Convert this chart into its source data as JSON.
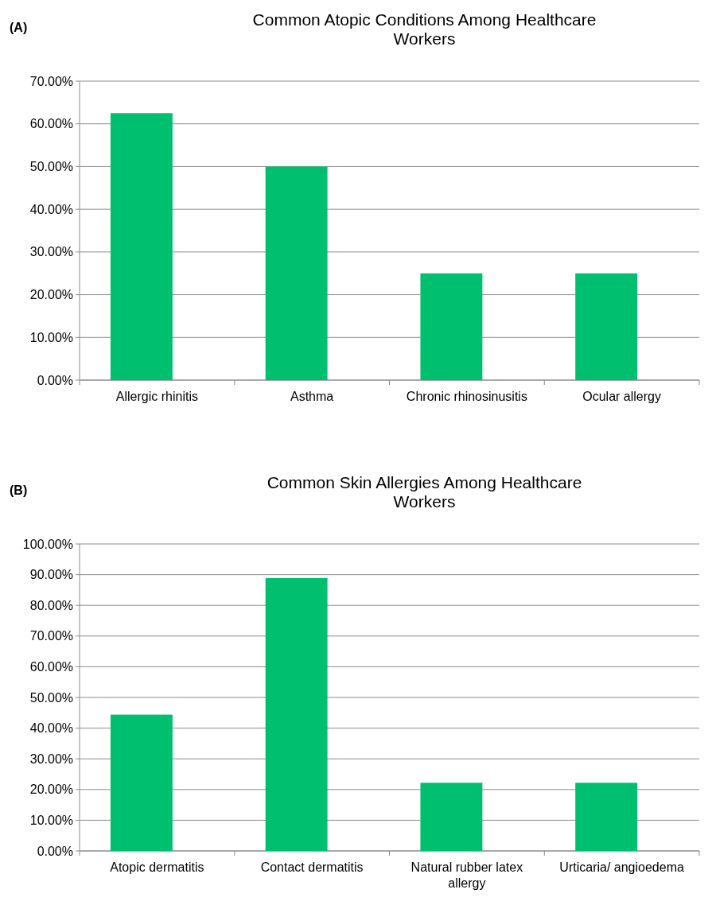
{
  "chart_data": [
    {
      "type": "bar",
      "title": "Common Atopic Conditions Among Healthcare Workers",
      "annotations": [
        "(A)"
      ],
      "categories": [
        "Allergic rhinitis",
        "Asthma",
        "Chronic rhinosinusitis",
        "Ocular allergy"
      ],
      "values": [
        62.5,
        50,
        25,
        25
      ],
      "color": "#00bf6f",
      "ylim": [
        0,
        70
      ],
      "yticks": [
        {
          "value": 0,
          "label": "0.00%"
        },
        {
          "value": 10,
          "label": "10.00%"
        },
        {
          "value": 20,
          "label": "20.00%"
        },
        {
          "value": 30,
          "label": "30.00%"
        },
        {
          "value": 40,
          "label": "40.00%"
        },
        {
          "value": 50,
          "label": "50.00%"
        },
        {
          "value": 60,
          "label": "60.00%"
        },
        {
          "value": 70,
          "label": "70.00%"
        }
      ],
      "grid": "y"
    },
    {
      "type": "bar",
      "title": "Common Skin Allergies Among Healthcare Workers",
      "annotations": [
        "(B)"
      ],
      "categories": [
        "Atopic dermatitis",
        "Contact dermatitis",
        "Natural rubber latex allergy",
        "Urticaria/ angioedema"
      ],
      "values": [
        44.4,
        88.9,
        22.2,
        22.2
      ],
      "color": "#00bf6f",
      "ylim": [
        0,
        100
      ],
      "yticks": [
        {
          "value": 0,
          "label": "0.00%"
        },
        {
          "value": 10,
          "label": "10.00%"
        },
        {
          "value": 20,
          "label": "20.00%"
        },
        {
          "value": 30,
          "label": "30.00%"
        },
        {
          "value": 40,
          "label": "40.00%"
        },
        {
          "value": 50,
          "label": "50.00%"
        },
        {
          "value": 60,
          "label": "60.00%"
        },
        {
          "value": 70,
          "label": "70.00%"
        },
        {
          "value": 80,
          "label": "80.00%"
        },
        {
          "value": 90,
          "label": "90.00%"
        },
        {
          "value": 100,
          "label": "100.00%"
        }
      ],
      "grid": "y"
    }
  ]
}
